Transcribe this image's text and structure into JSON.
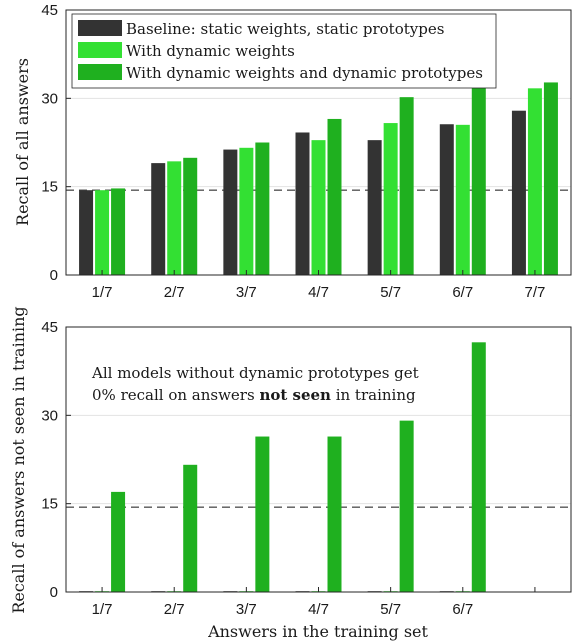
{
  "chart_data": [
    {
      "type": "bar",
      "categories": [
        "1/7",
        "2/7",
        "3/7",
        "4/7",
        "5/7",
        "6/7",
        "7/7"
      ],
      "ylabel": "Recall of all answers",
      "xlabel": "",
      "ylim": [
        0,
        45
      ],
      "yticks": [
        0,
        15,
        30,
        45
      ],
      "grid": true,
      "reference_line": 14.4,
      "legend": "top-left",
      "series": [
        {
          "name": "Baseline: static weights, static prototypes",
          "color": "#333333",
          "values": [
            14.4,
            19.0,
            21.3,
            24.2,
            22.9,
            25.6,
            27.9
          ]
        },
        {
          "name": "With dynamic weights",
          "color": "#33e033",
          "values": [
            14.4,
            19.3,
            21.6,
            22.9,
            25.8,
            25.5,
            31.7
          ]
        },
        {
          "name": "With dynamic weights and dynamic prototypes",
          "color": "#1fb01f",
          "values": [
            14.7,
            19.9,
            22.5,
            26.5,
            30.2,
            31.8,
            32.7
          ]
        }
      ]
    },
    {
      "type": "bar",
      "categories": [
        "1/7",
        "2/7",
        "3/7",
        "4/7",
        "5/7",
        "6/7",
        ""
      ],
      "ylabel": "Recall of answers not seen in training",
      "xlabel": "Answers in the training set",
      "ylim": [
        0,
        45
      ],
      "yticks": [
        0,
        15,
        30,
        45
      ],
      "grid": true,
      "reference_line": 14.4,
      "annotation": {
        "line1": "All models without dynamic prototypes get",
        "line2_pre": "0% recall on answers ",
        "line2_bold": "not seen",
        "line2_post": " in training"
      },
      "series": [
        {
          "name": "Baseline: static weights, static prototypes",
          "color": "#333333",
          "values": [
            0,
            0,
            0,
            0,
            0,
            0,
            null
          ]
        },
        {
          "name": "With dynamic weights",
          "color": "#33e033",
          "values": [
            0,
            0,
            0,
            0,
            0,
            0,
            null
          ]
        },
        {
          "name": "With dynamic weights and dynamic prototypes",
          "color": "#1fb01f",
          "values": [
            17.0,
            21.6,
            26.4,
            26.4,
            29.1,
            42.4,
            null
          ]
        }
      ]
    }
  ]
}
